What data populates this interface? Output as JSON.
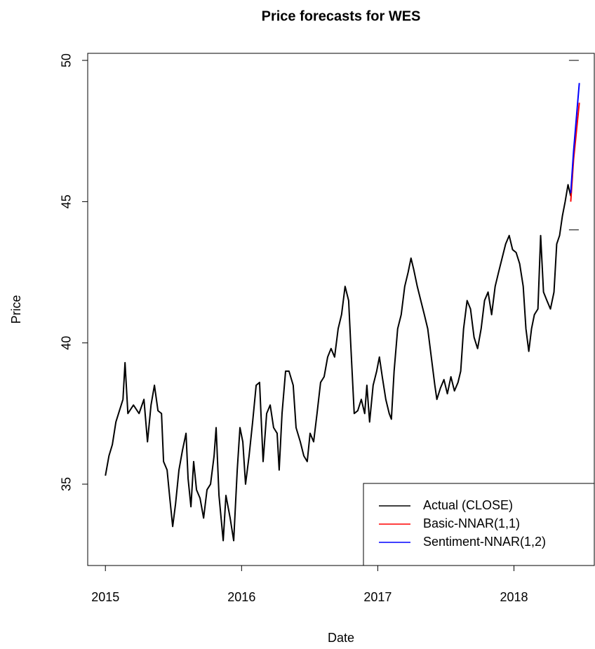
{
  "chart_data": {
    "type": "line",
    "title": "Price forecasts for WES",
    "x_label": "Date",
    "y_label": "Price",
    "xlim": [
      2014.87,
      2018.59
    ],
    "xticks": [
      2015,
      2016,
      2017,
      2018
    ],
    "ylim": [
      32.12,
      50.25
    ],
    "yticks": [
      35,
      40,
      45,
      50
    ],
    "legend": "bottomright",
    "interval_marks": {
      "x": 2018.44,
      "values": [
        44,
        50
      ],
      "color": "#000000"
    },
    "series": [
      {
        "name": "Actual (CLOSE)",
        "color": "#000000",
        "x": [
          2015.0,
          2015.026,
          2015.051,
          2015.077,
          2015.103,
          2015.129,
          2015.144,
          2015.165,
          2015.206,
          2015.247,
          2015.283,
          2015.309,
          2015.335,
          2015.36,
          2015.386,
          2015.412,
          2015.427,
          2015.453,
          2015.473,
          2015.494,
          2015.515,
          2015.54,
          2015.566,
          2015.592,
          2015.607,
          2015.628,
          2015.648,
          2015.669,
          2015.695,
          2015.721,
          2015.746,
          2015.772,
          2015.798,
          2015.813,
          2015.834,
          2015.865,
          2015.885,
          2015.916,
          2015.942,
          2015.968,
          2015.988,
          2016.009,
          2016.029,
          2016.055,
          2016.081,
          2016.107,
          2016.132,
          2016.158,
          2016.184,
          2016.21,
          2016.235,
          2016.261,
          2016.276,
          2016.297,
          2016.323,
          2016.348,
          2016.379,
          2016.4,
          2016.431,
          2016.457,
          2016.482,
          2016.503,
          2016.529,
          2016.554,
          2016.58,
          2016.606,
          2016.632,
          2016.657,
          2016.683,
          2016.709,
          2016.734,
          2016.76,
          2016.786,
          2016.801,
          2016.827,
          2016.853,
          2016.879,
          2016.904,
          2016.92,
          2016.94,
          2016.966,
          2016.992,
          2017.012,
          2017.033,
          2017.059,
          2017.084,
          2017.1,
          2017.12,
          2017.146,
          2017.172,
          2017.198,
          2017.223,
          2017.244,
          2017.264,
          2017.29,
          2017.316,
          2017.342,
          2017.367,
          2017.393,
          2017.419,
          2017.434,
          2017.46,
          2017.486,
          2017.511,
          2017.537,
          2017.563,
          2017.589,
          2017.609,
          2017.63,
          2017.656,
          2017.681,
          2017.707,
          2017.733,
          2017.759,
          2017.784,
          2017.81,
          2017.836,
          2017.862,
          2017.887,
          2017.913,
          2017.939,
          2017.965,
          2017.99,
          2018.016,
          2018.042,
          2018.068,
          2018.088,
          2018.109,
          2018.129,
          2018.15,
          2018.176,
          2018.196,
          2018.217,
          2018.242,
          2018.268,
          2018.294,
          2018.314,
          2018.335,
          2018.356,
          2018.376,
          2018.397,
          2018.417
        ],
        "values": [
          35.3,
          36.0,
          36.4,
          37.2,
          37.6,
          38.0,
          39.3,
          37.5,
          37.8,
          37.5,
          38.0,
          36.5,
          37.8,
          38.5,
          37.6,
          37.5,
          35.8,
          35.5,
          34.5,
          33.5,
          34.3,
          35.5,
          36.2,
          36.8,
          35.2,
          34.2,
          35.8,
          34.8,
          34.5,
          33.8,
          34.8,
          35.0,
          36.0,
          37.0,
          34.6,
          33.0,
          34.6,
          33.8,
          33.0,
          35.5,
          37.0,
          36.5,
          35.0,
          36.0,
          37.2,
          38.5,
          38.6,
          35.8,
          37.5,
          37.8,
          37.0,
          36.8,
          35.5,
          37.5,
          39.0,
          39.0,
          38.5,
          37.0,
          36.5,
          36.0,
          35.8,
          36.8,
          36.5,
          37.5,
          38.6,
          38.8,
          39.5,
          39.8,
          39.5,
          40.5,
          41.0,
          42.0,
          41.5,
          40.0,
          37.5,
          37.6,
          38.0,
          37.5,
          38.5,
          37.2,
          38.5,
          39.0,
          39.5,
          38.8,
          38.0,
          37.5,
          37.3,
          39.0,
          40.5,
          41.0,
          42.0,
          42.5,
          43.0,
          42.6,
          42.0,
          41.5,
          41.0,
          40.5,
          39.5,
          38.5,
          38.0,
          38.4,
          38.7,
          38.2,
          38.8,
          38.3,
          38.6,
          39.0,
          40.5,
          41.5,
          41.2,
          40.2,
          39.8,
          40.5,
          41.5,
          41.8,
          41.0,
          42.0,
          42.5,
          43.0,
          43.5,
          43.8,
          43.3,
          43.2,
          42.8,
          42.0,
          40.5,
          39.7,
          40.5,
          41.0,
          41.2,
          43.8,
          41.8,
          41.5,
          41.2,
          41.8,
          43.5,
          43.8,
          44.5,
          45.0,
          45.6,
          45.2
        ]
      },
      {
        "name": "Basic-NNAR(1,1)",
        "color": "#ff0000",
        "x": [
          2018.417,
          2018.438,
          2018.459,
          2018.48
        ],
        "values": [
          45.0,
          46.5,
          47.5,
          48.5
        ]
      },
      {
        "name": "Sentiment-NNAR(1,2)",
        "color": "#0000ff",
        "x": [
          2018.417,
          2018.438,
          2018.459,
          2018.48
        ],
        "values": [
          45.3,
          46.8,
          48.0,
          49.2
        ]
      }
    ]
  }
}
